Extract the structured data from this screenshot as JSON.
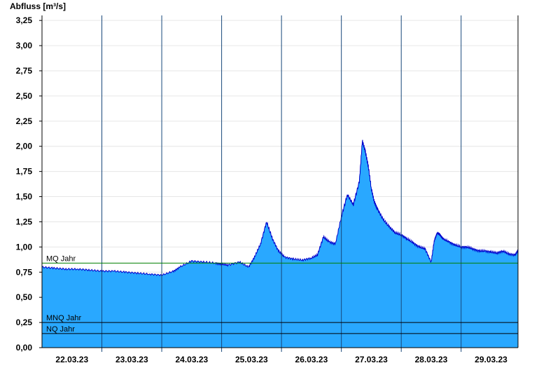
{
  "chart_data": {
    "type": "area",
    "ylabel": "Abfluss [m³/s]",
    "ylim": [
      0,
      3.3
    ],
    "grid": "horizontal",
    "yticks": [
      "0,00",
      "0,25",
      "0,50",
      "0,75",
      "1,00",
      "1,25",
      "1,50",
      "1,75",
      "2,00",
      "2,25",
      "2,50",
      "2,75",
      "3,00",
      "3,25"
    ],
    "ytick_values": [
      0,
      0.25,
      0.5,
      0.75,
      1,
      1.25,
      1.5,
      1.75,
      2,
      2.25,
      2.5,
      2.75,
      3,
      3.25
    ],
    "x_range_days": [
      0,
      7.95
    ],
    "xticks": [
      "22.03.23",
      "23.03.23",
      "24.03.23",
      "25.03.23",
      "26.03.23",
      "27.03.23",
      "28.03.23",
      "29.03.23"
    ],
    "xtick_positions_days": [
      0.5,
      1.5,
      2.5,
      3.5,
      4.5,
      5.5,
      6.5,
      7.5
    ],
    "day_separators_days": [
      1,
      2,
      3,
      4,
      5,
      6,
      7
    ],
    "fill_color": "#29a8ff",
    "line_color": "#0000cc",
    "reference_lines": [
      {
        "label": "MQ Jahr",
        "value": 0.84,
        "color": "#008000"
      },
      {
        "label": "MNQ Jahr",
        "value": 0.25,
        "color": "#000000"
      },
      {
        "label": "NQ Jahr",
        "value": 0.14,
        "color": "#000000"
      }
    ],
    "series": [
      {
        "x": [
          0,
          0.2,
          0.4,
          0.6,
          0.8,
          1,
          1.2,
          1.4,
          1.6,
          1.8,
          2,
          2.2,
          2.3,
          2.5,
          2.7,
          2.9,
          3,
          3.1,
          3.3,
          3.45,
          3.55,
          3.65,
          3.75,
          3.85,
          3.95,
          4.05,
          4.2,
          4.35,
          4.5,
          4.6,
          4.7,
          4.8,
          4.9,
          5,
          5.1,
          5.2,
          5.3,
          5.35,
          5.4,
          5.45,
          5.5,
          5.55,
          5.6,
          5.7,
          5.8,
          5.9,
          6,
          6.1,
          6.2,
          6.3,
          6.4,
          6.5,
          6.55,
          6.6,
          6.65,
          6.7,
          6.8,
          6.9,
          7,
          7.1,
          7.2,
          7.3,
          7.4,
          7.5,
          7.6,
          7.7,
          7.8,
          7.9,
          7.95
        ],
        "y": [
          0.8,
          0.79,
          0.78,
          0.78,
          0.77,
          0.76,
          0.76,
          0.75,
          0.74,
          0.73,
          0.72,
          0.76,
          0.8,
          0.86,
          0.85,
          0.84,
          0.83,
          0.82,
          0.85,
          0.8,
          0.9,
          1.03,
          1.25,
          1.08,
          0.96,
          0.9,
          0.88,
          0.87,
          0.89,
          0.92,
          1.1,
          1.05,
          1.03,
          1.3,
          1.52,
          1.42,
          1.65,
          2.05,
          1.95,
          1.8,
          1.58,
          1.45,
          1.38,
          1.27,
          1.2,
          1.14,
          1.12,
          1.08,
          1.04,
          1.0,
          0.98,
          0.85,
          1.06,
          1.14,
          1.12,
          1.08,
          1.05,
          1.02,
          1.0,
          1.0,
          0.98,
          0.96,
          0.96,
          0.95,
          0.94,
          0.96,
          0.93,
          0.92,
          0.97
        ]
      }
    ]
  }
}
